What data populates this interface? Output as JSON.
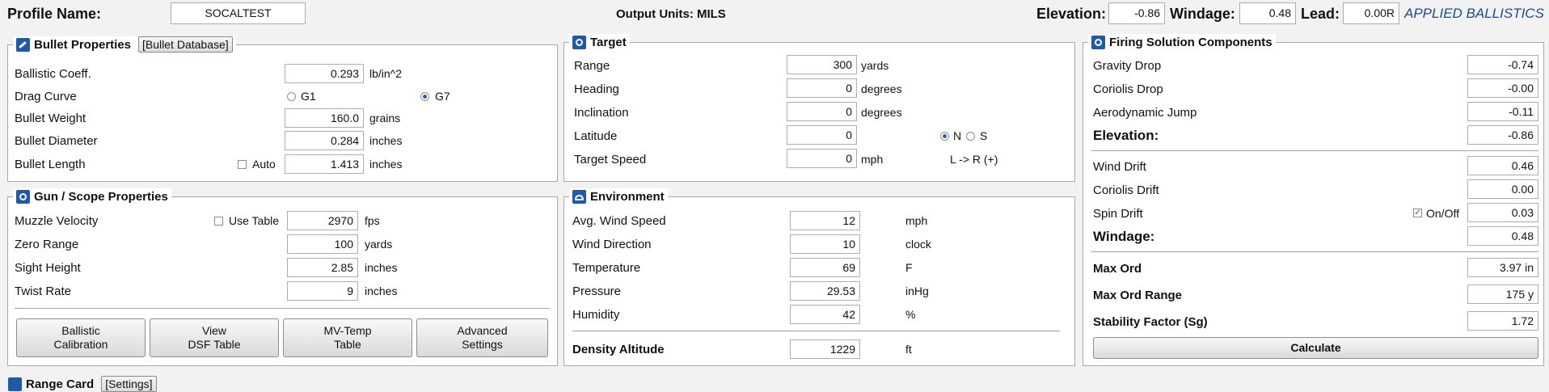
{
  "topbar": {
    "profile_label": "Profile Name:",
    "profile_value": "SOCALTEST",
    "output_units": "Output Units: MILS",
    "elevation_label": "Elevation:",
    "elevation_value": "-0.86",
    "windage_label": "Windage:",
    "windage_value": "0.48",
    "lead_label": "Lead:",
    "lead_value": "0.00R",
    "brand": "APPLIED BALLISTICS"
  },
  "bullet": {
    "title": "Bullet Properties",
    "db_button": "[Bullet Database]",
    "bc_label": "Ballistic Coeff.",
    "bc_value": "0.293",
    "bc_unit": "lb/in^2",
    "drag_label": "Drag Curve",
    "g1": "G1",
    "g7": "G7",
    "drag_selected": "G7",
    "weight_label": "Bullet Weight",
    "weight_value": "160.0",
    "weight_unit": "grains",
    "diameter_label": "Bullet Diameter",
    "diameter_value": "0.284",
    "diameter_unit": "inches",
    "length_label": "Bullet Length",
    "auto_label": "Auto",
    "length_value": "1.413",
    "length_unit": "inches"
  },
  "gun": {
    "title": "Gun / Scope  Properties",
    "mv_label": "Muzzle Velocity",
    "use_table": "Use Table",
    "mv_value": "2970",
    "mv_unit": "fps",
    "zero_label": "Zero Range",
    "zero_value": "100",
    "zero_unit": "yards",
    "sight_label": "Sight Height",
    "sight_value": "2.85",
    "sight_unit": "inches",
    "twist_label": "Twist Rate",
    "twist_value": "9",
    "twist_unit": "inches",
    "btn_calibration": "Ballistic\nCalibration",
    "btn_dsf": "View\nDSF Table",
    "btn_mvtemp": "MV-Temp\nTable",
    "btn_advanced": "Advanced\nSettings"
  },
  "target": {
    "title": "Target",
    "range_label": "Range",
    "range_value": "300",
    "range_unit": "yards",
    "heading_label": "Heading",
    "heading_value": "0",
    "heading_unit": "degrees",
    "incl_label": "Inclination",
    "incl_value": "0",
    "incl_unit": "degrees",
    "lat_label": "Latitude",
    "lat_value": "0",
    "n": "N",
    "s": "S",
    "hemisphere_selected": "N",
    "speed_label": "Target Speed",
    "speed_value": "0",
    "speed_unit": "mph",
    "direction_note": "L -> R (+)"
  },
  "environment": {
    "title": "Environment",
    "wind_label": "Avg. Wind Speed",
    "wind_value": "12",
    "wind_unit": "mph",
    "dir_label": "Wind Direction",
    "dir_value": "10",
    "dir_unit": "clock",
    "temp_label": "Temperature",
    "temp_value": "69",
    "temp_unit": "F",
    "press_label": "Pressure",
    "press_value": "29.53",
    "press_unit": "inHg",
    "hum_label": "Humidity",
    "hum_value": "42",
    "hum_unit": "%",
    "da_label": "Density Altitude",
    "da_value": "1229",
    "da_unit": "ft"
  },
  "solution": {
    "title": "Firing Solution Components",
    "gravity_label": "Gravity Drop",
    "gravity_value": "-0.74",
    "coriolis_drop_label": "Coriolis Drop",
    "coriolis_drop_value": "-0.00",
    "aero_label": "Aerodynamic Jump",
    "aero_value": "-0.11",
    "elev_label": "Elevation:",
    "elev_value": "-0.86",
    "drift_label": "Wind Drift",
    "drift_value": "0.46",
    "coriolis_drift_label": "Coriolis Drift",
    "coriolis_drift_value": "0.00",
    "spin_label": "Spin Drift",
    "onoff_label": "On/Off",
    "spin_value": "0.03",
    "wind_label": "Windage:",
    "wind_value": "0.48",
    "maxord_label": "Max Ord",
    "maxord_value": "3.97 in",
    "maxordrange_label": "Max Ord Range",
    "maxordrange_value": "175 y",
    "stability_label": "Stability Factor (Sg)",
    "stability_value": "1.72",
    "calc_button": "Calculate"
  },
  "bottom": {
    "label": "Range Card",
    "settings_button": "[Settings]"
  }
}
